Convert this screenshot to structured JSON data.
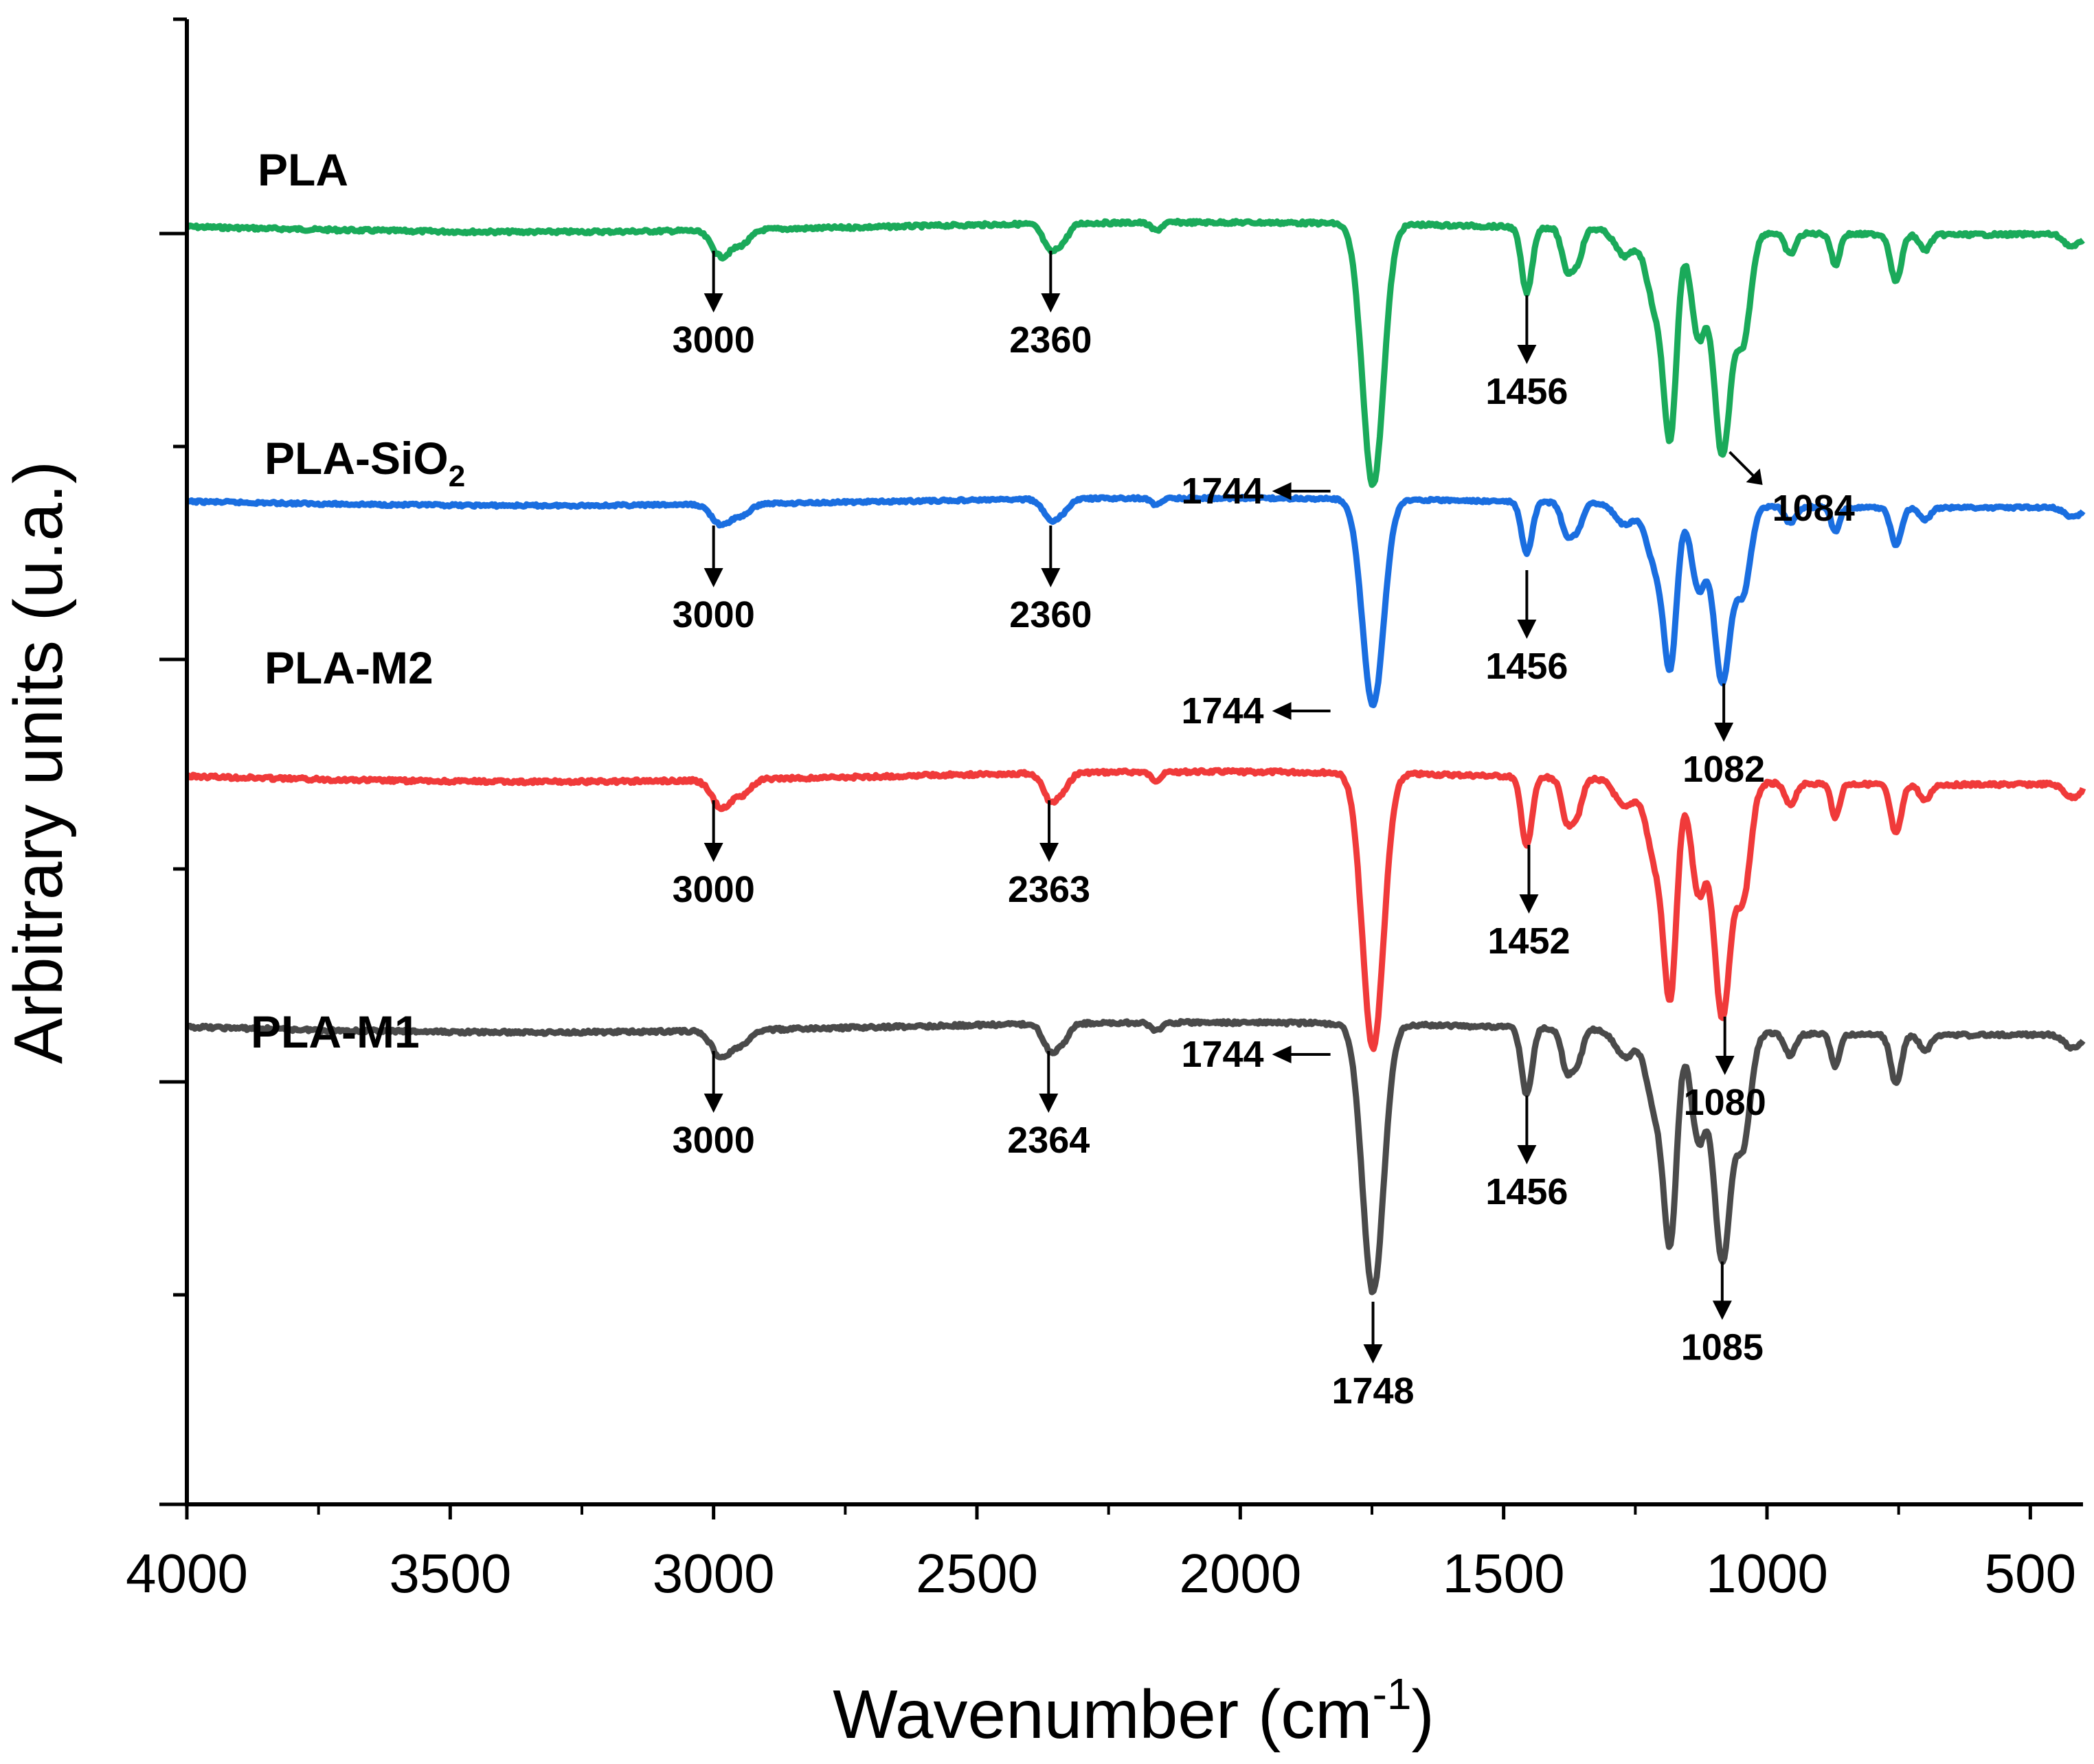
{
  "chart_data": {
    "type": "line",
    "title": "",
    "xlabel": "Wavenumber (cm",
    "xlabel_sup": "-1",
    "xlabel_close": ")",
    "ylabel": "Arbitrary units (u.a.)",
    "xlim": [
      4000,
      400
    ],
    "x_ticks": [
      "4000",
      "3500",
      "3000",
      "2500",
      "2000",
      "1500",
      "1000",
      "500"
    ],
    "x_tick_values": [
      4000,
      3500,
      3000,
      2500,
      2000,
      1500,
      1000,
      500
    ],
    "y_ticks_shown": false,
    "series": [
      {
        "name": "PLA",
        "name_sub": "",
        "color": "#1aaa5a",
        "baseline": 0,
        "peaks": [
          {
            "x": 3000,
            "label": "3000",
            "arrow": "down"
          },
          {
            "x": 2360,
            "label": "2360",
            "arrow": "down"
          },
          {
            "x": 1744,
            "label": "1744",
            "arrow": "left"
          },
          {
            "x": 1456,
            "label": "1456",
            "arrow": "down"
          },
          {
            "x": 1084,
            "label": "1084",
            "arrow": "down-right"
          }
        ]
      },
      {
        "name": "PLA-SiO",
        "name_sub": "2",
        "color": "#1a6ee0",
        "baseline": 1,
        "peaks": [
          {
            "x": 3000,
            "label": "3000",
            "arrow": "down"
          },
          {
            "x": 2360,
            "label": "2360",
            "arrow": "down"
          },
          {
            "x": 1744,
            "label": "1744",
            "arrow": "left"
          },
          {
            "x": 1456,
            "label": "1456",
            "arrow": "down"
          },
          {
            "x": 1082,
            "label": "1082",
            "arrow": "down"
          }
        ]
      },
      {
        "name": "PLA-M2",
        "name_sub": "",
        "color": "#f03a3a",
        "baseline": 2,
        "peaks": [
          {
            "x": 3000,
            "label": "3000",
            "arrow": "down"
          },
          {
            "x": 2363,
            "label": "2363",
            "arrow": "down"
          },
          {
            "x": 1744,
            "label": "1744",
            "arrow": "left"
          },
          {
            "x": 1452,
            "label": "1452",
            "arrow": "down"
          },
          {
            "x": 1080,
            "label": "1080",
            "arrow": "down"
          }
        ]
      },
      {
        "name": "PLA-M1",
        "name_sub": "",
        "color": "#4a4a4a",
        "baseline": 3,
        "peaks": [
          {
            "x": 3000,
            "label": "3000",
            "arrow": "down"
          },
          {
            "x": 2364,
            "label": "2364",
            "arrow": "down"
          },
          {
            "x": 1748,
            "label": "1748",
            "arrow": "down"
          },
          {
            "x": 1456,
            "label": "1456",
            "arrow": "down"
          },
          {
            "x": 1085,
            "label": "1085",
            "arrow": "down"
          }
        ]
      }
    ],
    "bands": [
      {
        "x": 2985,
        "depth": 0.1,
        "width": 18
      },
      {
        "x": 2945,
        "depth": 0.05,
        "width": 16
      },
      {
        "x": 2360,
        "depth": 0.1,
        "width": 14
      },
      {
        "x": 2335,
        "depth": 0.05,
        "width": 12
      },
      {
        "x": 2160,
        "depth": 0.03,
        "width": 10
      },
      {
        "x": 1748,
        "depth": 1.0,
        "width": 20
      },
      {
        "x": 1456,
        "depth": 0.25,
        "width": 10
      },
      {
        "x": 1380,
        "depth": 0.15,
        "width": 10
      },
      {
        "x": 1360,
        "depth": 0.12,
        "width": 10
      },
      {
        "x": 1270,
        "depth": 0.1,
        "width": 18
      },
      {
        "x": 1210,
        "depth": 0.3,
        "width": 18
      },
      {
        "x": 1183,
        "depth": 0.7,
        "width": 12
      },
      {
        "x": 1130,
        "depth": 0.4,
        "width": 14
      },
      {
        "x": 1085,
        "depth": 0.85,
        "width": 16
      },
      {
        "x": 1045,
        "depth": 0.4,
        "width": 14
      },
      {
        "x": 956,
        "depth": 0.08,
        "width": 10
      },
      {
        "x": 870,
        "depth": 0.12,
        "width": 8
      },
      {
        "x": 755,
        "depth": 0.18,
        "width": 10
      },
      {
        "x": 700,
        "depth": 0.06,
        "width": 10
      },
      {
        "x": 420,
        "depth": 0.05,
        "width": 15
      }
    ]
  }
}
